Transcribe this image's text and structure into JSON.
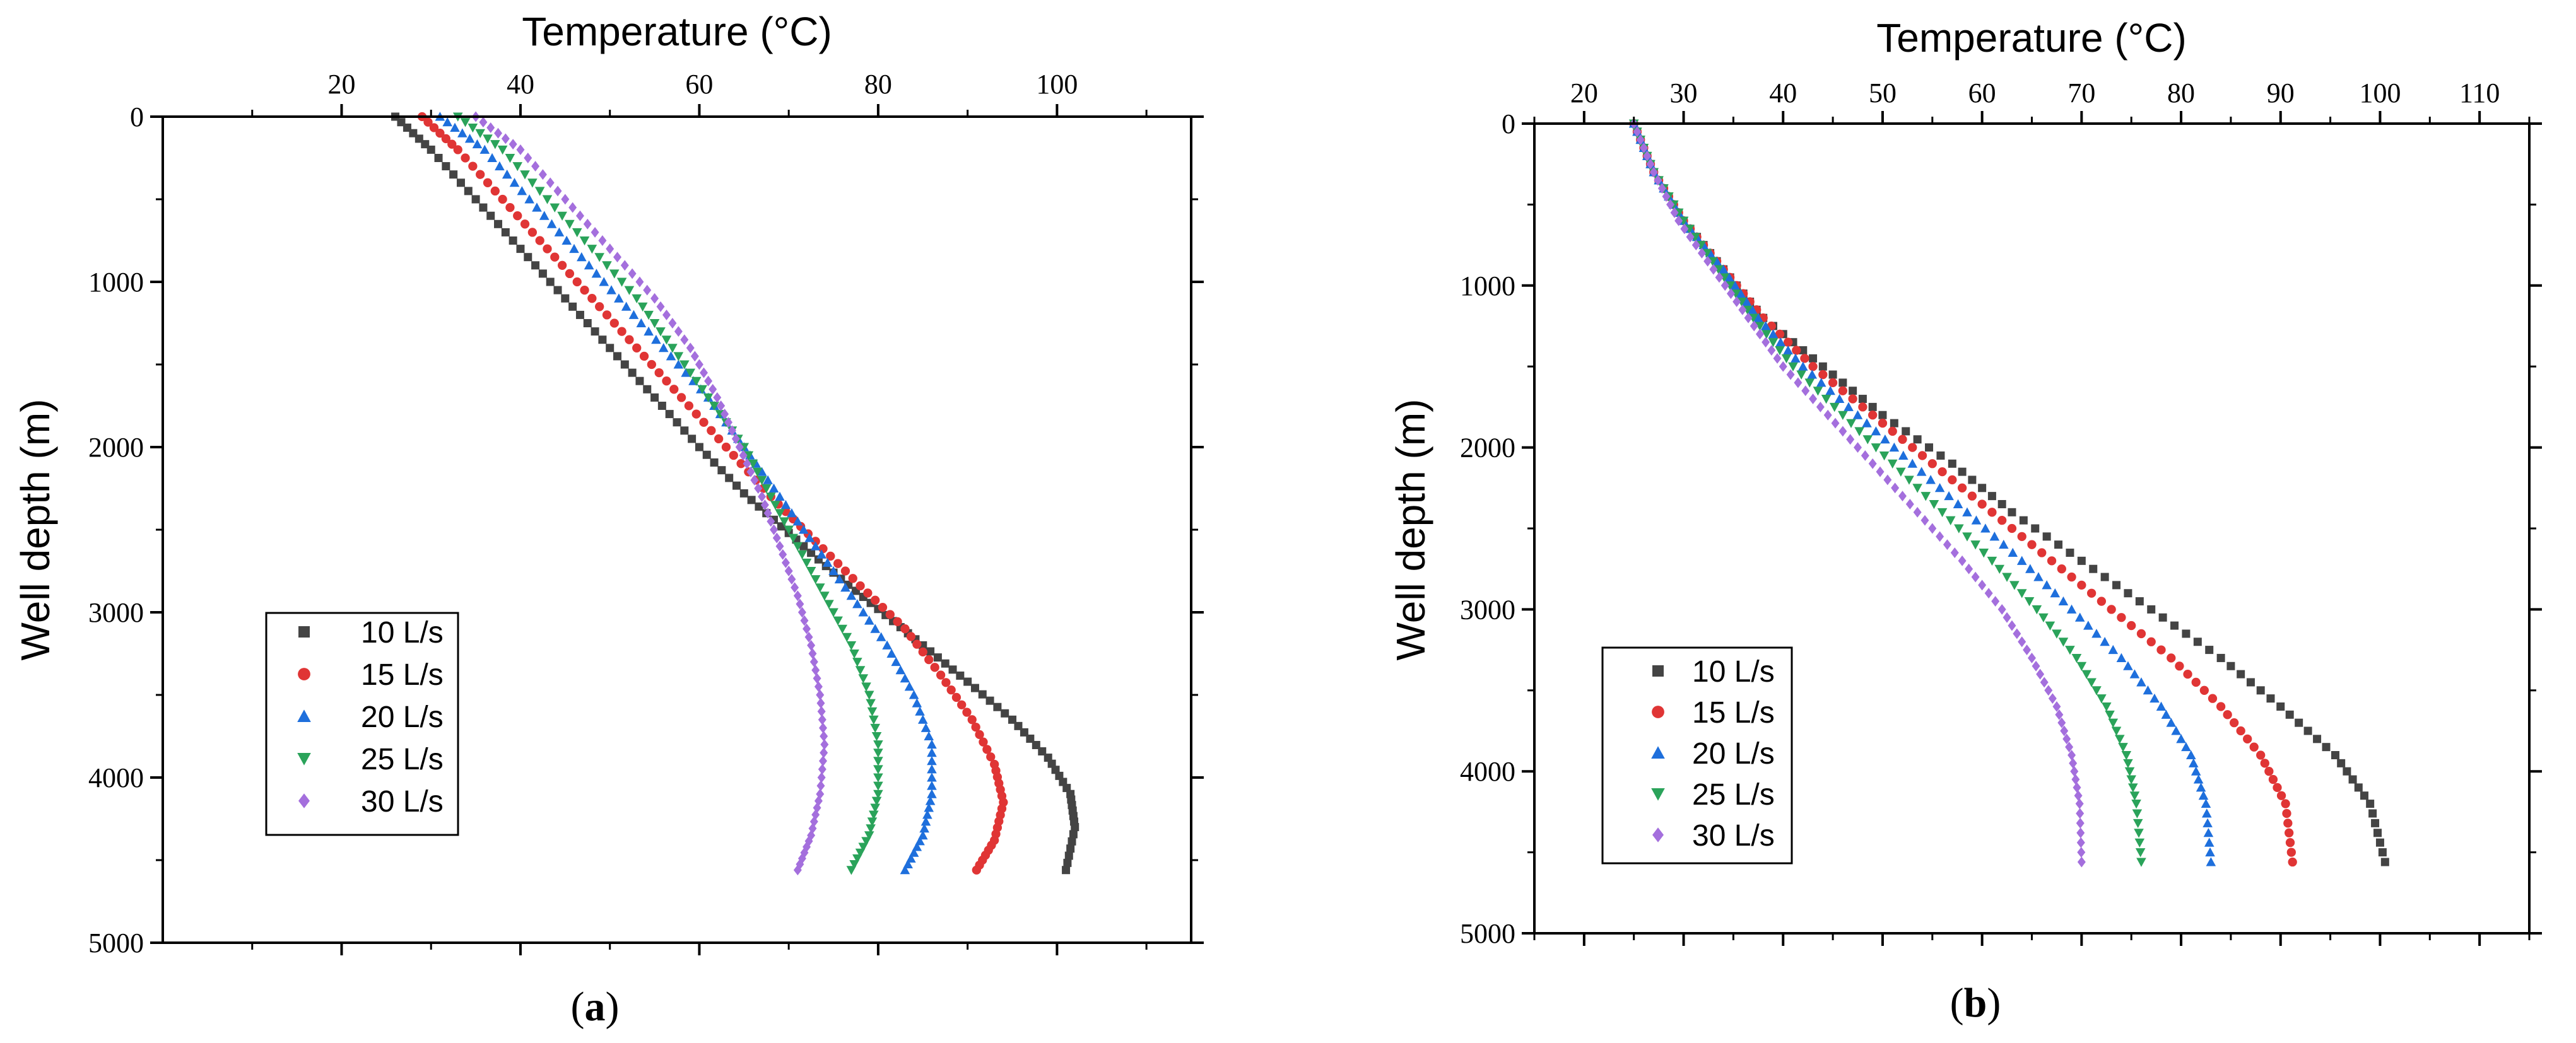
{
  "chart_data": [
    {
      "type": "scatter",
      "panel_label": "a",
      "xlabel": "Temperature (°C)",
      "ylabel": "Well depth (m)",
      "xlim": [
        0,
        115
      ],
      "ylim": [
        0,
        5000
      ],
      "xticks": [
        20,
        40,
        60,
        80,
        100
      ],
      "yticks": [
        0,
        1000,
        2000,
        3000,
        4000,
        5000
      ],
      "x_axis_position": "top",
      "y_inverted": true,
      "grid": false,
      "legend_position": "lower-left",
      "series": [
        {
          "name": "10 L/s",
          "marker": "square",
          "color": "#444444",
          "points": [
            [
              26,
              0
            ],
            [
              30,
              200
            ],
            [
              35,
              500
            ],
            [
              40,
              800
            ],
            [
              45,
              1100
            ],
            [
              50,
              1400
            ],
            [
              55,
              1700
            ],
            [
              60,
              2000
            ],
            [
              65,
              2280
            ],
            [
              70,
              2520
            ],
            [
              75,
              2760
            ],
            [
              80,
              2980
            ],
            [
              85,
              3200
            ],
            [
              90,
              3420
            ],
            [
              95,
              3650
            ],
            [
              99,
              3880
            ],
            [
              101.5,
              4100
            ],
            [
              102,
              4300
            ],
            [
              101,
              4560
            ]
          ]
        },
        {
          "name": "15 L/s",
          "marker": "circle",
          "color": "#e03535",
          "points": [
            [
              29,
              0
            ],
            [
              33,
              200
            ],
            [
              38,
              500
            ],
            [
              43,
              800
            ],
            [
              48,
              1100
            ],
            [
              53,
              1400
            ],
            [
              58,
              1700
            ],
            [
              63,
              2000
            ],
            [
              68,
              2300
            ],
            [
              73,
              2570
            ],
            [
              78,
              2840
            ],
            [
              83,
              3100
            ],
            [
              87,
              3380
            ],
            [
              90.5,
              3650
            ],
            [
              93,
              3920
            ],
            [
              94,
              4150
            ],
            [
              93,
              4380
            ],
            [
              91,
              4560
            ]
          ]
        },
        {
          "name": "20 L/s",
          "marker": "triangle-up",
          "color": "#1e6fdc",
          "points": [
            [
              31,
              0
            ],
            [
              36,
              200
            ],
            [
              41,
              500
            ],
            [
              46,
              800
            ],
            [
              51,
              1100
            ],
            [
              56,
              1400
            ],
            [
              61,
              1700
            ],
            [
              65,
              2000
            ],
            [
              69,
              2300
            ],
            [
              73,
              2600
            ],
            [
              77,
              2900
            ],
            [
              81,
              3200
            ],
            [
              84,
              3500
            ],
            [
              86,
              3800
            ],
            [
              86,
              4100
            ],
            [
              85,
              4350
            ],
            [
              83,
              4560
            ]
          ]
        },
        {
          "name": "25 L/s",
          "marker": "triangle-down",
          "color": "#2aa35a",
          "points": [
            [
              33,
              0
            ],
            [
              38,
              200
            ],
            [
              43,
              500
            ],
            [
              48,
              800
            ],
            [
              53,
              1100
            ],
            [
              57,
              1400
            ],
            [
              61,
              1700
            ],
            [
              65,
              2000
            ],
            [
              68,
              2300
            ],
            [
              71,
              2600
            ],
            [
              74,
              2900
            ],
            [
              77,
              3200
            ],
            [
              79,
              3500
            ],
            [
              80,
              3800
            ],
            [
              80,
              4100
            ],
            [
              79,
              4350
            ],
            [
              77,
              4560
            ]
          ]
        },
        {
          "name": "30 L/s",
          "marker": "diamond",
          "color": "#a46fdd",
          "points": [
            [
              35,
              0
            ],
            [
              40,
              200
            ],
            [
              45,
              500
            ],
            [
              50,
              800
            ],
            [
              55,
              1100
            ],
            [
              59,
              1400
            ],
            [
              62,
              1700
            ],
            [
              64.5,
              2000
            ],
            [
              67,
              2300
            ],
            [
              69,
              2600
            ],
            [
              71,
              2900
            ],
            [
              72.5,
              3200
            ],
            [
              73.5,
              3500
            ],
            [
              74,
              3800
            ],
            [
              73.5,
              4100
            ],
            [
              72.5,
              4350
            ],
            [
              71,
              4560
            ]
          ]
        }
      ]
    },
    {
      "type": "scatter",
      "panel_label": "b",
      "xlabel": "Temperature (°C)",
      "ylabel": "Well depth (m)",
      "xlim": [
        15,
        115
      ],
      "ylim": [
        0,
        5000
      ],
      "xticks": [
        20,
        30,
        40,
        50,
        60,
        70,
        80,
        90,
        100,
        110
      ],
      "yticks": [
        0,
        1000,
        2000,
        3000,
        4000,
        5000
      ],
      "x_axis_position": "top",
      "y_inverted": true,
      "grid": false,
      "legend_position": "lower-left",
      "series": [
        {
          "name": "10 L/s",
          "marker": "square",
          "color": "#444444",
          "points": [
            [
              25,
              0
            ],
            [
              27,
              300
            ],
            [
              30,
              600
            ],
            [
              34,
              900
            ],
            [
              38,
              1200
            ],
            [
              44,
              1500
            ],
            [
              50,
              1800
            ],
            [
              57,
              2100
            ],
            [
              63,
              2400
            ],
            [
              70,
              2700
            ],
            [
              77,
              3000
            ],
            [
              84,
              3300
            ],
            [
              90,
              3600
            ],
            [
              95.5,
              3900
            ],
            [
              99,
              4200
            ],
            [
              100.5,
              4560
            ]
          ]
        },
        {
          "name": "15 L/s",
          "marker": "circle",
          "color": "#e03535",
          "points": [
            [
              25,
              0
            ],
            [
              27,
              300
            ],
            [
              30,
              600
            ],
            [
              34,
              900
            ],
            [
              38,
              1200
            ],
            [
              43,
              1500
            ],
            [
              49,
              1800
            ],
            [
              55,
              2100
            ],
            [
              61,
              2400
            ],
            [
              67,
              2700
            ],
            [
              73,
              3000
            ],
            [
              79,
              3300
            ],
            [
              84,
              3600
            ],
            [
              88,
              3900
            ],
            [
              90.5,
              4200
            ],
            [
              91.2,
              4560
            ]
          ]
        },
        {
          "name": "20 L/s",
          "marker": "triangle-up",
          "color": "#1e6fdc",
          "points": [
            [
              25,
              0
            ],
            [
              27,
              300
            ],
            [
              30,
              600
            ],
            [
              34,
              900
            ],
            [
              37.5,
              1200
            ],
            [
              42,
              1500
            ],
            [
              47.5,
              1800
            ],
            [
              53,
              2100
            ],
            [
              58.5,
              2400
            ],
            [
              64,
              2700
            ],
            [
              69,
              3000
            ],
            [
              74,
              3300
            ],
            [
              78,
              3600
            ],
            [
              81,
              3900
            ],
            [
              82.5,
              4200
            ],
            [
              83,
              4560
            ]
          ]
        },
        {
          "name": "25 L/s",
          "marker": "triangle-down",
          "color": "#2aa35a",
          "points": [
            [
              25,
              0
            ],
            [
              27,
              300
            ],
            [
              30,
              600
            ],
            [
              33.5,
              900
            ],
            [
              37,
              1200
            ],
            [
              41,
              1500
            ],
            [
              46,
              1800
            ],
            [
              51,
              2100
            ],
            [
              56,
              2400
            ],
            [
              61,
              2700
            ],
            [
              65.5,
              3000
            ],
            [
              69.5,
              3300
            ],
            [
              72.5,
              3600
            ],
            [
              74.5,
              3900
            ],
            [
              75.5,
              4200
            ],
            [
              76,
              4560
            ]
          ]
        },
        {
          "name": "30 L/s",
          "marker": "diamond",
          "color": "#a46fdd",
          "points": [
            [
              25,
              0
            ],
            [
              27,
              300
            ],
            [
              29.5,
              600
            ],
            [
              33,
              900
            ],
            [
              36.5,
              1200
            ],
            [
              40,
              1500
            ],
            [
              44.5,
              1800
            ],
            [
              49,
              2100
            ],
            [
              53.5,
              2400
            ],
            [
              58,
              2700
            ],
            [
              62,
              3000
            ],
            [
              65,
              3300
            ],
            [
              67.5,
              3600
            ],
            [
              69,
              3900
            ],
            [
              69.8,
              4200
            ],
            [
              70,
              4560
            ]
          ]
        }
      ]
    }
  ]
}
